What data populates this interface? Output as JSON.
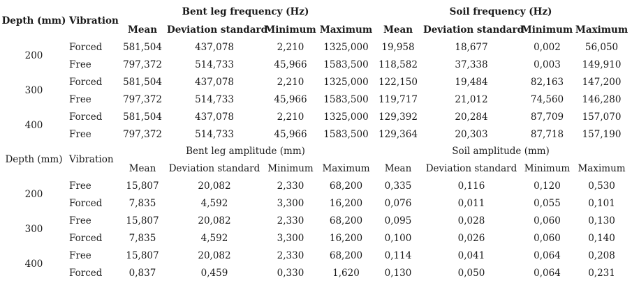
{
  "frequency_table": {
    "depth_header": "Depth (mm)",
    "vibration_header": "Vibration",
    "group1_title": "Bent leg frequency (Hz)",
    "group2_title": "Soil frequency (Hz)",
    "columns": [
      "Mean",
      "Deviation standard",
      "Minimum",
      "Maximum",
      "Mean",
      "Deviation standard",
      "Minimum",
      "Maximum"
    ],
    "rows": [
      {
        "depth": "200",
        "vibration": "Forced",
        "values": [
          "581,504",
          "437,078",
          "2,210",
          "1325,000",
          "19,958",
          "18,677",
          "0,002",
          "56,050"
        ]
      },
      {
        "depth": "",
        "vibration": "Free",
        "values": [
          "797,372",
          "514,733",
          "45,966",
          "1583,500",
          "118,582",
          "37,338",
          "0,003",
          "149,910"
        ]
      },
      {
        "depth": "300",
        "vibration": "Forced",
        "values": [
          "581,504",
          "437,078",
          "2,210",
          "1325,000",
          "122,150",
          "19,484",
          "82,163",
          "147,200"
        ]
      },
      {
        "depth": "",
        "vibration": "Free",
        "values": [
          "797,372",
          "514,733",
          "45,966",
          "1583,500",
          "119,717",
          "21,012",
          "74,560",
          "146,280"
        ]
      },
      {
        "depth": "400",
        "vibration": "Forced",
        "values": [
          "581,504",
          "437,078",
          "2,210",
          "1325,000",
          "129,392",
          "20,284",
          "87,709",
          "157,070"
        ]
      },
      {
        "depth": "",
        "vibration": "Free",
        "values": [
          "797,372",
          "514,733",
          "45,966",
          "1583,500",
          "129,364",
          "20,303",
          "87,718",
          "157,190"
        ]
      }
    ]
  },
  "amplitude_table": {
    "depth_header": "Depth (mm)",
    "vibration_header": "Vibration",
    "group1_title": "Bent leg amplitude (mm)",
    "group2_title": "Soil amplitude (mm)",
    "columns": [
      "Mean",
      "Deviation standard",
      "Minimum",
      "Maximum",
      "Mean",
      "Deviation standard",
      "Minimum",
      "Maximum"
    ],
    "rows": [
      {
        "depth": "200",
        "vibration": "Free",
        "values": [
          "15,807",
          "20,082",
          "2,330",
          "68,200",
          "0,335",
          "0,116",
          "0,120",
          "0,530"
        ]
      },
      {
        "depth": "",
        "vibration": "Forced",
        "values": [
          "7,835",
          "4,592",
          "3,300",
          "16,200",
          "0,076",
          "0,011",
          "0,055",
          "0,101"
        ]
      },
      {
        "depth": "300",
        "vibration": "Free",
        "values": [
          "15,807",
          "20,082",
          "2,330",
          "68,200",
          "0,095",
          "0,028",
          "0,060",
          "0,130"
        ]
      },
      {
        "depth": "",
        "vibration": "Forced",
        "values": [
          "7,835",
          "4,592",
          "3,300",
          "16,200",
          "0,100",
          "0,026",
          "0,060",
          "0,140"
        ]
      },
      {
        "depth": "400",
        "vibration": "Free",
        "values": [
          "15,807",
          "20,082",
          "2,330",
          "68,200",
          "0,114",
          "0,041",
          "0,064",
          "0,208"
        ]
      },
      {
        "depth": "",
        "vibration": "Forced",
        "values": [
          "0,837",
          "0,459",
          "0,330",
          "1,620",
          "0,130",
          "0,050",
          "0,064",
          "0,231"
        ]
      }
    ]
  }
}
